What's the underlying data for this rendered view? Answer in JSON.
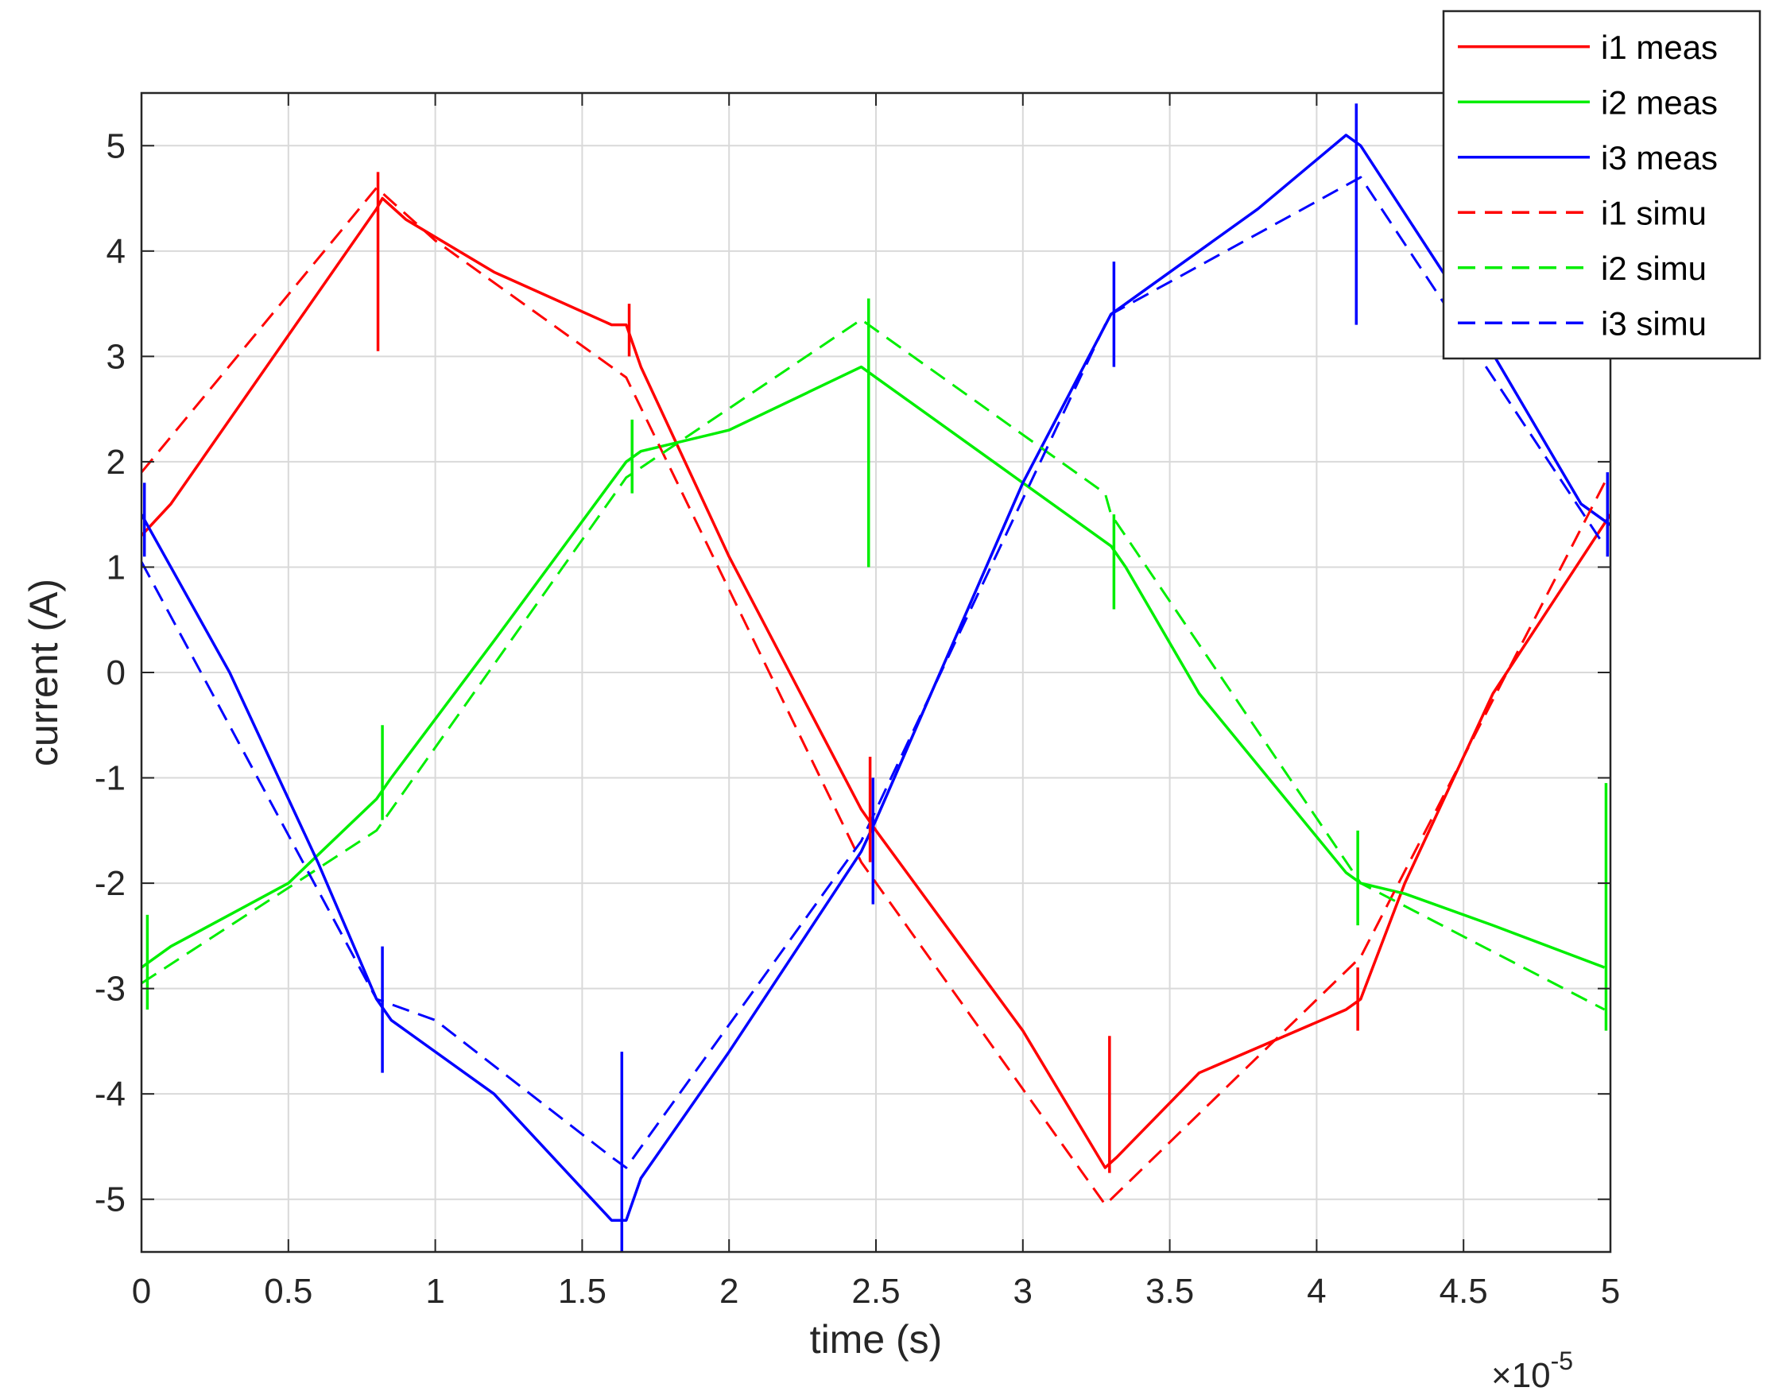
{
  "chart_data": {
    "type": "line",
    "title": "",
    "xlabel": "time (s)",
    "ylabel": "current (A)",
    "x_exponent_label": "×10",
    "x_exponent_power": "-5",
    "xlim": [
      0,
      5
    ],
    "ylim": [
      -5.5,
      5.5
    ],
    "x_ticks": [
      0,
      0.5,
      1,
      1.5,
      2,
      2.5,
      3,
      3.5,
      4,
      4.5,
      5
    ],
    "x_tick_labels": [
      "0",
      "0.5",
      "1",
      "1.5",
      "2",
      "2.5",
      "3",
      "3.5",
      "4",
      "4.5",
      "5"
    ],
    "y_ticks": [
      -5,
      -4,
      -3,
      -2,
      -1,
      0,
      1,
      2,
      3,
      4,
      5
    ],
    "y_tick_labels": [
      "-5",
      "-4",
      "-3",
      "-2",
      "-1",
      "0",
      "1",
      "2",
      "3",
      "4",
      "5"
    ],
    "grid": true,
    "legend_position": "top-right",
    "series": [
      {
        "name": "i1 meas",
        "color": "#ff0000",
        "style": "solid",
        "x": [
          0,
          0.1,
          0.8,
          0.82,
          0.9,
          1.2,
          1.6,
          1.65,
          1.7,
          2.0,
          2.45,
          2.5,
          3.0,
          3.28,
          3.32,
          3.6,
          4.1,
          4.15,
          4.3,
          4.6,
          5.0
        ],
        "y": [
          1.3,
          1.6,
          4.4,
          4.5,
          4.3,
          3.8,
          3.3,
          3.3,
          2.9,
          1.1,
          -1.3,
          -1.5,
          -3.4,
          -4.7,
          -4.6,
          -3.8,
          -3.2,
          -3.1,
          -2.0,
          -0.2,
          1.5
        ]
      },
      {
        "name": "i2 meas",
        "color": "#00ee00",
        "style": "solid",
        "x": [
          0,
          0.1,
          0.5,
          0.8,
          0.85,
          1.2,
          1.65,
          1.7,
          2.0,
          2.45,
          2.5,
          2.6,
          3.0,
          3.3,
          3.35,
          3.6,
          4.1,
          4.15,
          4.3,
          4.6,
          4.98
        ],
        "y": [
          -2.8,
          -2.6,
          -2.0,
          -1.2,
          -1.0,
          0.3,
          2.0,
          2.1,
          2.3,
          2.9,
          2.8,
          2.6,
          1.8,
          1.2,
          1.0,
          -0.2,
          -1.9,
          -2.0,
          -2.1,
          -2.4,
          -2.8
        ]
      },
      {
        "name": "i3 meas",
        "color": "#0000ff",
        "style": "solid",
        "x": [
          0,
          0.3,
          0.6,
          0.8,
          0.85,
          1.2,
          1.6,
          1.65,
          1.7,
          2.0,
          2.45,
          2.5,
          3.0,
          3.3,
          3.35,
          3.8,
          4.1,
          4.15,
          4.5,
          4.9,
          5.0
        ],
        "y": [
          1.5,
          0.0,
          -1.8,
          -3.1,
          -3.3,
          -4.0,
          -5.2,
          -5.2,
          -4.8,
          -3.6,
          -1.7,
          -1.4,
          1.8,
          3.4,
          3.5,
          4.4,
          5.1,
          5.0,
          3.5,
          1.6,
          1.4
        ]
      },
      {
        "name": "i1 simu",
        "color": "#ff0000",
        "style": "dashed",
        "x": [
          0,
          0.8,
          1.0,
          1.6,
          1.65,
          2.45,
          3.28,
          3.3,
          4.15,
          4.98
        ],
        "y": [
          1.9,
          4.6,
          4.1,
          2.9,
          2.8,
          -1.8,
          -5.05,
          -5.0,
          -2.7,
          1.8
        ]
      },
      {
        "name": "i2 simu",
        "color": "#00ee00",
        "style": "dashed",
        "x": [
          0,
          0.8,
          1.65,
          2.45,
          3.28,
          3.3,
          4.15,
          4.98
        ],
        "y": [
          -2.95,
          -1.5,
          1.85,
          3.35,
          1.7,
          1.5,
          -2.0,
          -3.2
        ]
      },
      {
        "name": "i3 simu",
        "color": "#0000ff",
        "style": "dashed",
        "x": [
          0,
          0.8,
          1.0,
          1.6,
          1.65,
          2.45,
          3.28,
          3.3,
          4.15,
          4.98
        ],
        "y": [
          1.05,
          -3.1,
          -3.3,
          -4.6,
          -4.7,
          -1.6,
          3.3,
          3.4,
          4.7,
          1.2
        ]
      }
    ],
    "spikes": [
      {
        "series": 0,
        "x": 0.805,
        "y0": 3.05,
        "y1": 4.75
      },
      {
        "series": 0,
        "x": 3.295,
        "y0": -4.75,
        "y1": -3.45
      },
      {
        "series": 0,
        "x": 1.66,
        "y0": 3.0,
        "y1": 3.5
      },
      {
        "series": 0,
        "x": 4.14,
        "y0": -3.4,
        "y1": -2.8
      },
      {
        "series": 0,
        "x": 2.48,
        "y0": -1.8,
        "y1": -0.8
      },
      {
        "series": 1,
        "x": 0.82,
        "y0": -1.4,
        "y1": -0.5
      },
      {
        "series": 1,
        "x": 1.67,
        "y0": 1.7,
        "y1": 2.4
      },
      {
        "series": 1,
        "x": 2.475,
        "y0": 1.0,
        "y1": 3.55
      },
      {
        "series": 1,
        "x": 3.31,
        "y0": 0.6,
        "y1": 1.5
      },
      {
        "series": 1,
        "x": 4.14,
        "y0": -2.4,
        "y1": -1.5
      },
      {
        "series": 1,
        "x": 4.985,
        "y0": -3.4,
        "y1": -1.05
      },
      {
        "series": 1,
        "x": 0.02,
        "y0": -3.2,
        "y1": -2.3
      },
      {
        "series": 2,
        "x": 0.82,
        "y0": -3.8,
        "y1": -2.6
      },
      {
        "series": 2,
        "x": 1.635,
        "y0": -5.5,
        "y1": -3.6
      },
      {
        "series": 2,
        "x": 2.49,
        "y0": -2.2,
        "y1": -1.0
      },
      {
        "series": 2,
        "x": 3.31,
        "y0": 2.9,
        "y1": 3.9
      },
      {
        "series": 2,
        "x": 4.135,
        "y0": 3.3,
        "y1": 5.4
      },
      {
        "series": 2,
        "x": 0.01,
        "y0": 1.1,
        "y1": 1.8
      },
      {
        "series": 2,
        "x": 4.99,
        "y0": 1.1,
        "y1": 1.9
      }
    ]
  }
}
